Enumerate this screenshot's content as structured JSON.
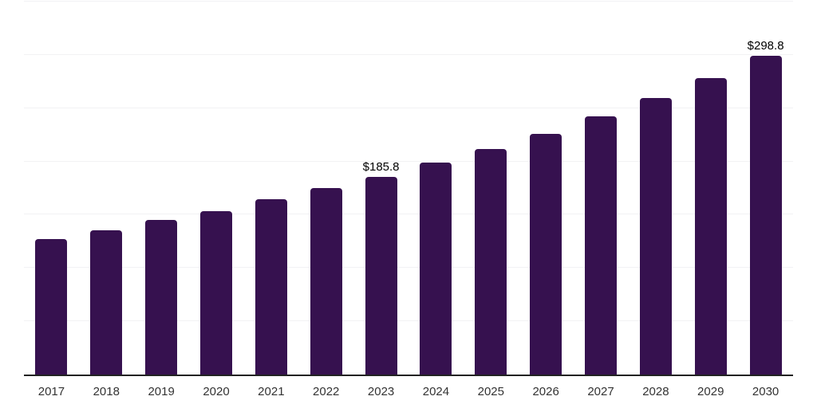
{
  "chart_data": {
    "type": "bar",
    "title": "",
    "xlabel": "",
    "ylabel": "",
    "categories": [
      "2017",
      "2018",
      "2019",
      "2020",
      "2021",
      "2022",
      "2023",
      "2024",
      "2025",
      "2026",
      "2027",
      "2028",
      "2029",
      "2030"
    ],
    "values": [
      126.9,
      135.7,
      145.3,
      153.6,
      164.6,
      175.1,
      185.8,
      198.8,
      211.5,
      226.2,
      242.3,
      259.4,
      278.0,
      298.8
    ],
    "value_labels": [
      null,
      null,
      null,
      null,
      null,
      null,
      "$185.8",
      null,
      null,
      null,
      null,
      null,
      null,
      "$298.8"
    ],
    "ylim": [
      0,
      350
    ],
    "grid_step": 50,
    "grid": true,
    "legend": false,
    "colors": {
      "bar": "#36114F",
      "gridline": "#f2f2f4",
      "axis": "#222222",
      "tick_label": "#333333",
      "value_label": "#000000",
      "background": "#ffffff"
    }
  }
}
